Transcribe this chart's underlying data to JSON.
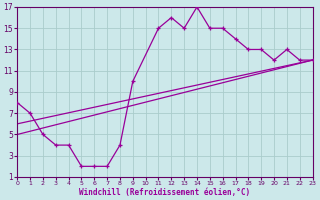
{
  "xlabel": "Windchill (Refroidissement éolien,°C)",
  "bg_color": "#cce8ea",
  "line_color": "#990099",
  "grid_color": "#aacccc",
  "axis_color": "#660066",
  "xlim": [
    0,
    23
  ],
  "ylim": [
    1,
    17
  ],
  "xticks": [
    0,
    1,
    2,
    3,
    4,
    5,
    6,
    7,
    8,
    9,
    10,
    11,
    12,
    13,
    14,
    15,
    16,
    17,
    18,
    19,
    20,
    21,
    22,
    23
  ],
  "yticks": [
    1,
    3,
    5,
    7,
    9,
    11,
    13,
    15,
    17
  ],
  "series1_x": [
    0,
    1,
    2,
    3,
    4,
    5,
    6,
    7,
    8,
    9,
    11,
    12,
    13,
    14,
    15,
    16,
    17,
    18,
    19,
    20,
    21,
    22,
    23
  ],
  "series1_y": [
    8,
    7,
    5,
    4,
    4,
    2,
    2,
    2,
    4,
    10,
    15,
    16,
    15,
    17,
    15,
    15,
    14,
    13,
    13,
    12,
    13,
    12,
    12
  ],
  "series2_x": [
    0,
    23
  ],
  "series2_y": [
    5,
    12
  ],
  "series3_x": [
    0,
    23
  ],
  "series3_y": [
    6,
    12
  ],
  "marker": "+"
}
